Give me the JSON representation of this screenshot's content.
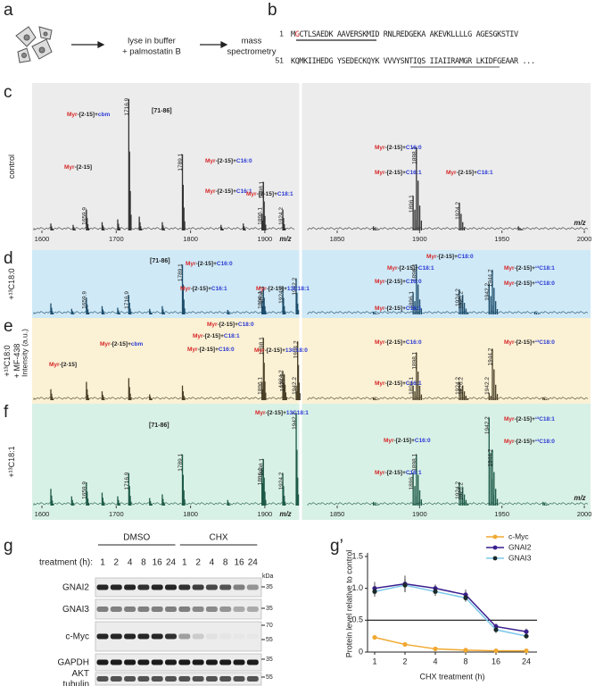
{
  "panel_labels": [
    "a",
    "b",
    "c",
    "d",
    "e",
    "f",
    "g",
    "g’"
  ],
  "workflow": {
    "step1": [
      "lyse in buffer",
      "+ palmostatin B"
    ],
    "step2": [
      "mass",
      "spectrometry"
    ]
  },
  "sequence": [
    {
      "start": 1,
      "parts": [
        "M",
        "G",
        "CTLSAEDK AAVERSKMID RNLREDGEKA AKEVKLLLLG AGESGKSTIV"
      ]
    },
    {
      "start": 51,
      "parts": [
        "KQMKIIHEDG YSEDECKQYK VVVYSNTIQS IIAIIRAMGR LKIDFGEAAR ..."
      ]
    }
  ],
  "spectra": {
    "intensity_label": "Intensity (a.u.)",
    "mz_label": "m/z",
    "xticks_left": [
      1600,
      1700,
      1800,
      1900
    ],
    "xticks_right": [
      1850,
      1900,
      1950,
      2000
    ],
    "myr_color": "#d62728",
    "mod_color": "#2b3bd4",
    "peptide_color": "#999999",
    "rows": [
      {
        "condition": [
          "control"
        ],
        "background": "#ececec",
        "color": "#333333",
        "left": {
          "labeled_peaks": [
            {
              "mz": 1659.9,
              "intensity": 15
            },
            {
              "mz": 1716.9,
              "intensity": 95
            },
            {
              "mz": 1789.1,
              "intensity": 55
            },
            {
              "mz": 1896.1,
              "intensity": 12
            },
            {
              "mz": 1898.1,
              "intensity": 35
            },
            {
              "mz": 1924.2,
              "intensity": 15
            }
          ],
          "other_peaks": [
            {
              "mz": 1612,
              "intensity": 5
            },
            {
              "mz": 1642,
              "intensity": 4
            },
            {
              "mz": 1681,
              "intensity": 6
            },
            {
              "mz": 1702,
              "intensity": 8
            },
            {
              "mz": 1731,
              "intensity": 10
            },
            {
              "mz": 1762,
              "intensity": 6
            },
            {
              "mz": 1841,
              "intensity": 4
            },
            {
              "mz": 1871,
              "intensity": 5
            }
          ],
          "annotations": [
            {
              "parts": [
                "Myr",
                "-[2-15]+",
                "cbm"
              ]
            },
            {
              "text": "[71-86]"
            },
            {
              "parts": [
                "Myr",
                "-[2-15]"
              ]
            },
            {
              "parts": [
                "Myr",
                "-[2-15]+",
                "C16:0"
              ]
            },
            {
              "parts": [
                "Myr",
                "-[2-15]+",
                "C16:1"
              ]
            },
            {
              "parts": [
                "Myr",
                "-[2-15]+",
                "C18:1"
              ]
            }
          ]
        },
        "right": {
          "labeled_peaks": [
            {
              "mz": 1896.1,
              "intensity": 25
            },
            {
              "mz": 1898.1,
              "intensity": 60
            },
            {
              "mz": 1924.2,
              "intensity": 20
            }
          ],
          "other_peaks": [
            {
              "mz": 1872,
              "intensity": 3
            },
            {
              "mz": 1960,
              "intensity": 3
            }
          ],
          "annotations": [
            {
              "parts": [
                "Myr",
                "-[2-15]+",
                "C16:0"
              ]
            },
            {
              "parts": [
                "Myr",
                "-[2-15]+",
                "C16:1"
              ]
            },
            {
              "parts": [
                "Myr",
                "-[2-15]+",
                "C18:1"
              ]
            }
          ]
        }
      },
      {
        "condition": [
          "+¹³C18:0"
        ],
        "background": "#cfe9f7",
        "color": "#1d4d6b",
        "left": {
          "labeled_peaks": [
            {
              "mz": 1659.9,
              "intensity": 30
            },
            {
              "mz": 1716.9,
              "intensity": 35
            },
            {
              "mz": 1789.1,
              "intensity": 90
            },
            {
              "mz": 1896.1,
              "intensity": 25
            },
            {
              "mz": 1898.1,
              "intensity": 50
            },
            {
              "mz": 1924.2,
              "intensity": 50
            },
            {
              "mz": 1942.2,
              "intensity": 65
            }
          ],
          "other_peaks": [
            {
              "mz": 1612,
              "intensity": 20
            },
            {
              "mz": 1640,
              "intensity": 10
            },
            {
              "mz": 1681,
              "intensity": 15
            },
            {
              "mz": 1702,
              "intensity": 12
            },
            {
              "mz": 1745,
              "intensity": 10
            },
            {
              "mz": 1762,
              "intensity": 15
            },
            {
              "mz": 1850,
              "intensity": 8
            }
          ],
          "annotations": [
            {
              "text": "[71-86]"
            },
            {
              "parts": [
                "Myr",
                "-[2-15]+",
                "C16:0"
              ]
            },
            {
              "parts": [
                "Myr",
                "-[2-15]+",
                "C16:1"
              ]
            },
            {
              "parts": [
                "Myr",
                "-[2-15]+",
                "13C18:1"
              ]
            }
          ]
        },
        "right": {
          "labeled_peaks": [
            {
              "mz": 1896.1,
              "intensity": 40
            },
            {
              "mz": 1898.1,
              "intensity": 90
            },
            {
              "mz": 1924.2,
              "intensity": 45
            },
            {
              "mz": 1926.2,
              "intensity": 35
            },
            {
              "mz": 1942.2,
              "intensity": 55
            },
            {
              "mz": 1944.2,
              "intensity": 80
            }
          ],
          "other_peaks": [
            {
              "mz": 1872,
              "intensity": 5
            },
            {
              "mz": 1970,
              "intensity": 5
            }
          ],
          "annotations": [
            {
              "parts": [
                "Myr",
                "-[2-15]+",
                "C18:0"
              ]
            },
            {
              "parts": [
                "Myr",
                "-[2-15]+",
                "C18:1"
              ]
            },
            {
              "parts": [
                "Myr",
                "-[2-15]+",
                "C16:0"
              ]
            },
            {
              "parts": [
                "Myr",
                "-[2-15]+",
                "¹³C18:1"
              ]
            },
            {
              "parts": [
                "Myr",
                "-[2-15]+",
                "¹³C18:0"
              ]
            },
            {
              "parts": [
                "Myr",
                "-[2-15]+",
                "C16:1"
              ]
            }
          ]
        }
      },
      {
        "condition": [
          "+¹³C18:0",
          "+ MF-438"
        ],
        "background": "#fbf1d5",
        "color": "#4a4028",
        "left": {
          "labeled_peaks": [
            {
              "mz": 1896.1,
              "intensity": 25
            },
            {
              "mz": 1898.1,
              "intensity": 85
            },
            {
              "mz": 1924.2,
              "intensity": 40
            },
            {
              "mz": 1926.2,
              "intensity": 35
            },
            {
              "mz": 1942.2,
              "intensity": 20
            },
            {
              "mz": 1944.2,
              "intensity": 80
            }
          ],
          "other_peaks": [
            {
              "mz": 1612,
              "intensity": 15
            },
            {
              "mz": 1659.9,
              "intensity": 25
            },
            {
              "mz": 1681,
              "intensity": 12
            },
            {
              "mz": 1716.9,
              "intensity": 30
            },
            {
              "mz": 1745,
              "intensity": 8
            },
            {
              "mz": 1789.1,
              "intensity": 20
            }
          ],
          "annotations": [
            {
              "parts": [
                "Myr",
                "-[2-15]+",
                "cbm"
              ]
            },
            {
              "parts": [
                "Myr",
                "-[2-15]"
              ]
            },
            {
              "parts": [
                "Myr",
                "-[2-15]+",
                "C18:0"
              ]
            },
            {
              "parts": [
                "Myr",
                "-[2-15]+",
                "C18:1"
              ]
            },
            {
              "parts": [
                "Myr",
                "-[2-15]+",
                "C16:0"
              ]
            },
            {
              "parts": [
                "Myr",
                "-[2-15]+",
                "13C18:0"
              ]
            }
          ]
        },
        "right": {
          "labeled_peaks": [
            {
              "mz": 1896.1,
              "intensity": 20
            },
            {
              "mz": 1898.1,
              "intensity": 65
            },
            {
              "mz": 1924.2,
              "intensity": 25
            },
            {
              "mz": 1926.2,
              "intensity": 20
            },
            {
              "mz": 1942.2,
              "intensity": 10
            },
            {
              "mz": 1944.2,
              "intensity": 70
            }
          ],
          "other_peaks": [
            {
              "mz": 1872,
              "intensity": 4
            },
            {
              "mz": 1975,
              "intensity": 4
            }
          ],
          "annotations": [
            {
              "parts": [
                "Myr",
                "-[2-15]+",
                "C16:0"
              ]
            },
            {
              "parts": [
                "Myr",
                "-[2-15]+",
                "¹³C18:0"
              ]
            },
            {
              "parts": [
                "Myr",
                "-[2-15]+",
                "C16:1"
              ]
            }
          ]
        }
      },
      {
        "condition": [
          "+¹³C18:1"
        ],
        "background": "#d8f1e6",
        "color": "#1d5a48",
        "left": {
          "labeled_peaks": [
            {
              "mz": 1659.9,
              "intensity": 25
            },
            {
              "mz": 1716.9,
              "intensity": 35
            },
            {
              "mz": 1789.1,
              "intensity": 55
            },
            {
              "mz": 1896.1,
              "intensity": 40
            },
            {
              "mz": 1898.1,
              "intensity": 50
            },
            {
              "mz": 1924.2,
              "intensity": 35
            },
            {
              "mz": 1942.2,
              "intensity": 100
            }
          ],
          "other_peaks": [
            {
              "mz": 1612,
              "intensity": 18
            },
            {
              "mz": 1640,
              "intensity": 10
            },
            {
              "mz": 1681,
              "intensity": 14
            },
            {
              "mz": 1702,
              "intensity": 10
            },
            {
              "mz": 1745,
              "intensity": 8
            },
            {
              "mz": 1762,
              "intensity": 12
            },
            {
              "mz": 1850,
              "intensity": 6
            }
          ],
          "annotations": [
            {
              "text": "[71-86]"
            },
            {
              "parts": [
                "Myr",
                "-[2-15]+",
                "13C18:1"
              ]
            }
          ]
        },
        "right": {
          "labeled_peaks": [
            {
              "mz": 1896.1,
              "intensity": 35
            },
            {
              "mz": 1898.1,
              "intensity": 55
            },
            {
              "mz": 1924.2,
              "intensity": 25
            },
            {
              "mz": 1926.2,
              "intensity": 20
            },
            {
              "mz": 1942.2,
              "intensity": 95
            },
            {
              "mz": 1944.2,
              "intensity": 60
            }
          ],
          "other_peaks": [
            {
              "mz": 1872,
              "intensity": 4
            },
            {
              "mz": 1975,
              "intensity": 4
            }
          ],
          "annotations": [
            {
              "parts": [
                "Myr",
                "-[2-15]+",
                "¹³C18:1"
              ]
            },
            {
              "parts": [
                "Myr",
                "-[2-15]+",
                "C16:0"
              ]
            },
            {
              "parts": [
                "Myr",
                "-[2-15]+",
                "¹³C18:0"
              ]
            },
            {
              "parts": [
                "Myr",
                "-[2-15]+",
                "C16:1"
              ]
            }
          ]
        }
      }
    ]
  },
  "blot": {
    "groups": [
      "DMSO",
      "CHX"
    ],
    "treatment_label": "treatment (h):",
    "lanes": [
      1,
      2,
      4,
      8,
      16,
      24,
      1,
      2,
      4,
      8,
      16,
      24
    ],
    "kda_label": "kDa",
    "rows": [
      {
        "name": [
          "GNAI2"
        ],
        "markers": [
          35
        ],
        "bands": [
          0.9,
          0.9,
          0.9,
          0.85,
          0.9,
          0.9,
          0.85,
          0.8,
          0.75,
          0.7,
          0.5,
          0.4
        ]
      },
      {
        "name": [
          "GNAI3"
        ],
        "markers": [
          35
        ],
        "bands": [
          0.5,
          0.5,
          0.5,
          0.5,
          0.5,
          0.5,
          0.5,
          0.45,
          0.45,
          0.4,
          0.3,
          0.3
        ]
      },
      {
        "name": [
          "c-Myc"
        ],
        "markers": [
          70,
          55
        ],
        "bands": [
          0.9,
          0.9,
          0.9,
          0.9,
          0.9,
          0.85,
          0.35,
          0.15,
          0.05,
          0.03,
          0.02,
          0.02
        ]
      },
      {
        "name": [
          "GAPDH"
        ],
        "markers": [
          35
        ],
        "bands": [
          0.95,
          0.95,
          0.95,
          0.95,
          0.95,
          0.95,
          0.95,
          0.95,
          0.95,
          0.95,
          0.95,
          0.95
        ]
      },
      {
        "name": [
          "AKT",
          "tubulin"
        ],
        "markers": [
          55
        ],
        "bands": [
          0.7,
          0.7,
          0.7,
          0.7,
          0.7,
          0.7,
          0.7,
          0.7,
          0.7,
          0.7,
          0.7,
          0.7
        ]
      }
    ]
  },
  "chart_data": {
    "type": "line",
    "x_label": "CHX treatment (h)",
    "y_label": "Protein level relative to control",
    "categories": [
      1,
      2,
      4,
      8,
      16,
      24
    ],
    "ylim": [
      0,
      1.5
    ],
    "yticks": [
      0,
      0.5,
      {
        "value": 1,
        "label": "1.0"
      },
      1.5
    ],
    "reference_line": 0.5,
    "series": [
      {
        "name": "c-Myc",
        "color": "#f0a830",
        "marker_color": "#f0a830",
        "values": [
          0.23,
          0.12,
          0.05,
          0.03,
          0.02,
          0.02
        ],
        "errors": [
          0.01,
          0.01,
          0.01,
          0.01,
          0.01,
          0.01
        ]
      },
      {
        "name": "GNAI2",
        "color": "#3a1f8f",
        "marker_color": "#3a1f8f",
        "values": [
          1.0,
          1.07,
          1.0,
          0.9,
          0.4,
          0.32
        ],
        "errors": [
          0.1,
          0.13,
          0.06,
          0.08,
          0.05,
          0.05
        ]
      },
      {
        "name": "GNAI3",
        "color": "#7cc8ea",
        "marker_color": "#1a2a2a",
        "values": [
          0.95,
          1.05,
          0.95,
          0.85,
          0.35,
          0.25
        ],
        "errors": [
          0.08,
          0.1,
          0.07,
          0.06,
          0.05,
          0.03
        ]
      }
    ]
  }
}
